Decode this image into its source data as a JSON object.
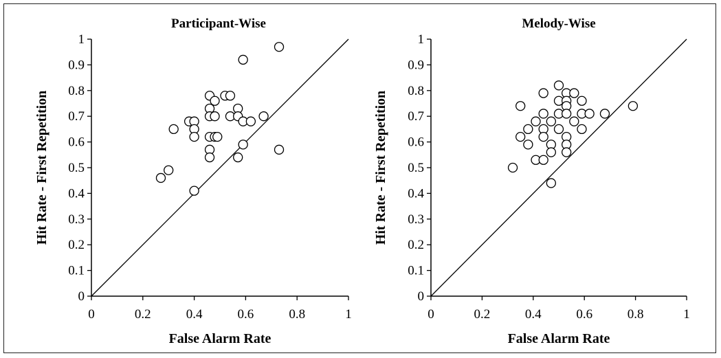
{
  "chart_data": [
    {
      "type": "scatter",
      "title": "Participant-Wise",
      "xlabel": "False Alarm Rate",
      "ylabel": "Hit Rate - First Repetition",
      "xlim": [
        0,
        1
      ],
      "ylim": [
        0,
        1
      ],
      "xticks": [
        "0",
        "0.2",
        "0.4",
        "0.6",
        "0.8",
        "1"
      ],
      "yticks": [
        "0",
        "0.1",
        "0.2",
        "0.3",
        "0.4",
        "0.5",
        "0.6",
        "0.7",
        "0.8",
        "0.9",
        "1"
      ],
      "grid": false,
      "reference_line": "y = x",
      "points": [
        [
          0.73,
          0.97
        ],
        [
          0.59,
          0.92
        ],
        [
          0.46,
          0.78
        ],
        [
          0.52,
          0.78
        ],
        [
          0.54,
          0.78
        ],
        [
          0.48,
          0.76
        ],
        [
          0.46,
          0.73
        ],
        [
          0.57,
          0.73
        ],
        [
          0.46,
          0.7
        ],
        [
          0.48,
          0.7
        ],
        [
          0.54,
          0.7
        ],
        [
          0.57,
          0.7
        ],
        [
          0.67,
          0.7
        ],
        [
          0.38,
          0.68
        ],
        [
          0.4,
          0.68
        ],
        [
          0.59,
          0.68
        ],
        [
          0.62,
          0.68
        ],
        [
          0.32,
          0.65
        ],
        [
          0.4,
          0.65
        ],
        [
          0.4,
          0.62
        ],
        [
          0.46,
          0.62
        ],
        [
          0.48,
          0.62
        ],
        [
          0.49,
          0.62
        ],
        [
          0.59,
          0.59
        ],
        [
          0.46,
          0.57
        ],
        [
          0.73,
          0.57
        ],
        [
          0.46,
          0.54
        ],
        [
          0.57,
          0.54
        ],
        [
          0.3,
          0.49
        ],
        [
          0.27,
          0.46
        ],
        [
          0.4,
          0.41
        ]
      ]
    },
    {
      "type": "scatter",
      "title": "Melody-Wise",
      "xlabel": "False Alarm Rate",
      "ylabel": "Hit Rate - First Repetition",
      "xlim": [
        0,
        1
      ],
      "ylim": [
        0,
        1
      ],
      "xticks": [
        "0",
        "0.2",
        "0.4",
        "0.6",
        "0.8",
        "1"
      ],
      "yticks": [
        "0",
        "0.1",
        "0.2",
        "0.3",
        "0.4",
        "0.5",
        "0.6",
        "0.7",
        "0.8",
        "0.9",
        "1"
      ],
      "grid": false,
      "reference_line": "y = x",
      "points": [
        [
          0.5,
          0.82
        ],
        [
          0.44,
          0.79
        ],
        [
          0.53,
          0.79
        ],
        [
          0.56,
          0.79
        ],
        [
          0.5,
          0.76
        ],
        [
          0.53,
          0.76
        ],
        [
          0.59,
          0.76
        ],
        [
          0.35,
          0.74
        ],
        [
          0.53,
          0.74
        ],
        [
          0.79,
          0.74
        ],
        [
          0.44,
          0.71
        ],
        [
          0.5,
          0.71
        ],
        [
          0.53,
          0.71
        ],
        [
          0.59,
          0.71
        ],
        [
          0.62,
          0.71
        ],
        [
          0.68,
          0.71
        ],
        [
          0.41,
          0.68
        ],
        [
          0.47,
          0.68
        ],
        [
          0.56,
          0.68
        ],
        [
          0.38,
          0.65
        ],
        [
          0.44,
          0.65
        ],
        [
          0.5,
          0.65
        ],
        [
          0.59,
          0.65
        ],
        [
          0.35,
          0.62
        ],
        [
          0.44,
          0.62
        ],
        [
          0.53,
          0.62
        ],
        [
          0.38,
          0.59
        ],
        [
          0.47,
          0.59
        ],
        [
          0.53,
          0.59
        ],
        [
          0.47,
          0.56
        ],
        [
          0.53,
          0.56
        ],
        [
          0.41,
          0.53
        ],
        [
          0.44,
          0.53
        ],
        [
          0.32,
          0.5
        ],
        [
          0.47,
          0.44
        ]
      ]
    }
  ]
}
